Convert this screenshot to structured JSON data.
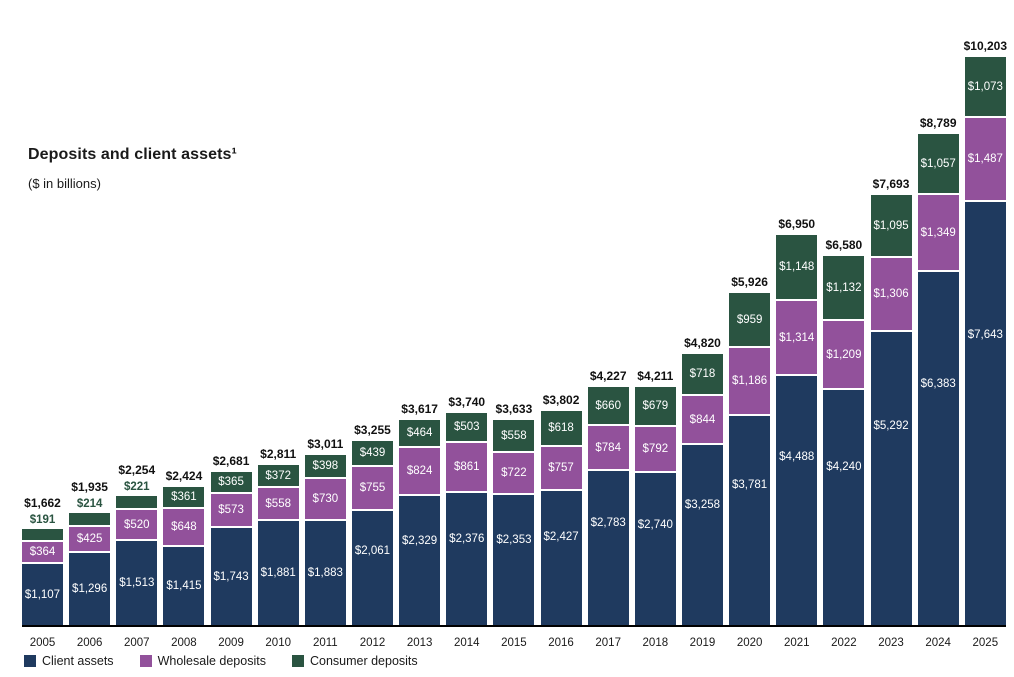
{
  "title": "Deposits and client assets¹",
  "subtitle": "($ in billions)",
  "colors": {
    "client_assets": "#1f3a5f",
    "wholesale_deposits": "#92519b",
    "consumer_deposits": "#2a5441",
    "total_label": "#111111",
    "axis_line": "#000000"
  },
  "legend": [
    {
      "label": "Client assets",
      "color": "#1f3a5f"
    },
    {
      "label": "Wholesale deposits",
      "color": "#92519b"
    },
    {
      "label": "Consumer deposits",
      "color": "#2a5441"
    }
  ],
  "chart_data": {
    "type": "bar",
    "stacked": true,
    "title": "Deposits and client assets",
    "subtitle": "($ in billions)",
    "ylim": [
      0,
      10500
    ],
    "grid": false,
    "legend_position": "bottom-left",
    "categories": [
      "2005",
      "2006",
      "2007",
      "2008",
      "2009",
      "2010",
      "2011",
      "2012",
      "2013",
      "2014",
      "2015",
      "2016",
      "2017",
      "2018",
      "2019",
      "2020",
      "2021",
      "2022",
      "2023",
      "2024",
      "2025"
    ],
    "series": [
      {
        "name": "Client assets",
        "color": "#1f3a5f",
        "values": [
          1107,
          1296,
          1513,
          1415,
          1743,
          1881,
          1883,
          2061,
          2329,
          2376,
          2353,
          2427,
          2783,
          2740,
          3258,
          3781,
          4488,
          4240,
          5292,
          6383,
          7643
        ]
      },
      {
        "name": "Wholesale deposits",
        "color": "#92519b",
        "values": [
          364,
          425,
          520,
          648,
          573,
          558,
          730,
          755,
          824,
          861,
          722,
          757,
          784,
          792,
          844,
          1186,
          1314,
          1209,
          1306,
          1349,
          1487
        ]
      },
      {
        "name": "Consumer deposits",
        "color": "#2a5441",
        "values": [
          191,
          214,
          221,
          361,
          365,
          372,
          398,
          439,
          464,
          503,
          558,
          618,
          660,
          679,
          718,
          959,
          1148,
          1132,
          1095,
          1057,
          1073
        ]
      }
    ],
    "totals": [
      1662,
      1935,
      2254,
      2424,
      2681,
      2811,
      3011,
      3255,
      3617,
      3740,
      3633,
      3802,
      4227,
      4211,
      4820,
      5926,
      6950,
      6580,
      7693,
      8789,
      10203
    ]
  }
}
